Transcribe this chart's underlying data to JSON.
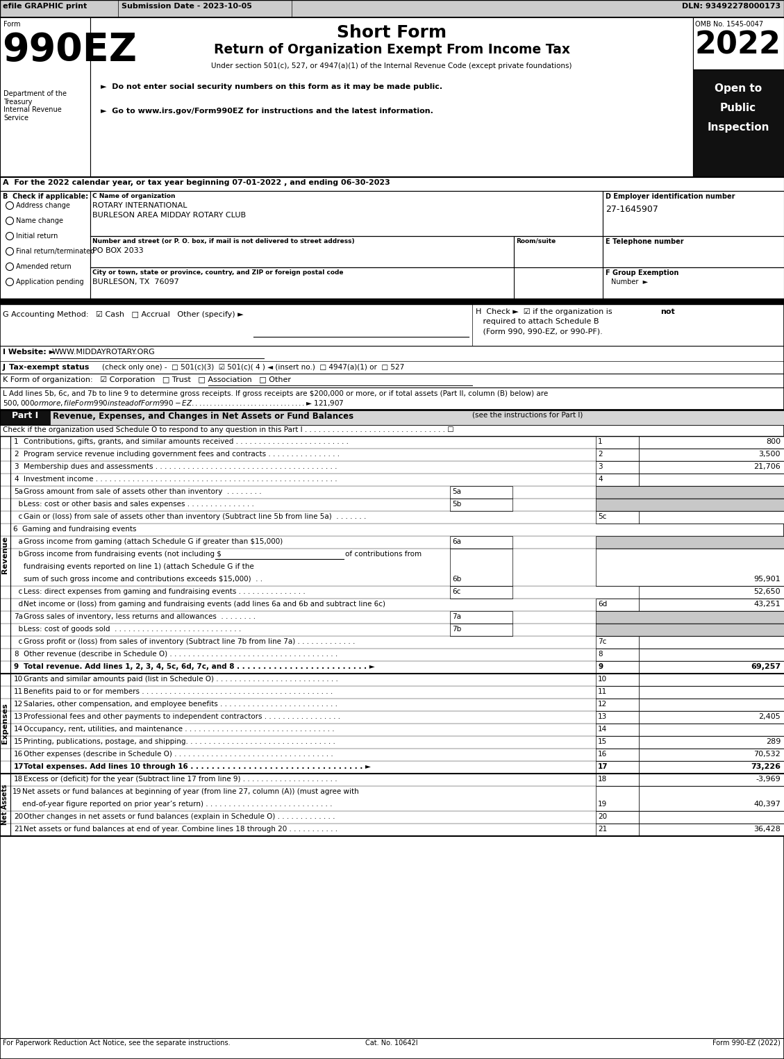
{
  "header_efile": "efile GRAPHIC print",
  "header_submission": "Submission Date - 2023-10-05",
  "header_dln": "DLN: 93492278000173",
  "form_title": "Short Form",
  "form_subtitle": "Return of Organization Exempt From Income Tax",
  "form_under": "Under section 501(c), 527, or 4947(a)(1) of the Internal Revenue Code (except private foundations)",
  "form_note1": "►  Do not enter social security numbers on this form as it may be made public.",
  "form_note2": "►  Go to www.irs.gov/Form990EZ for instructions and the latest information.",
  "omb": "OMB No. 1545-0047",
  "year": "2022",
  "dept_text": "Department of the\nTreasury\nInternal Revenue\nService",
  "section_A": "A  For the 2022 calendar year, or tax year beginning 07-01-2022 , and ending 06-30-2023",
  "checkboxes_B": [
    "Address change",
    "Name change",
    "Initial return",
    "Final return/terminated",
    "Amended return",
    "Application pending"
  ],
  "org_name1": "ROTARY INTERNATIONAL",
  "org_name2": "BURLESON AREA MIDDAY ROTARY CLUB",
  "street": "PO BOX 2033",
  "city": "BURLESON, TX  76097",
  "ein": "27-1645907",
  "footer_left": "For Paperwork Reduction Act Notice, see the separate instructions.",
  "footer_cat": "Cat. No. 10642I",
  "footer_right": "Form 990-EZ (2022)"
}
